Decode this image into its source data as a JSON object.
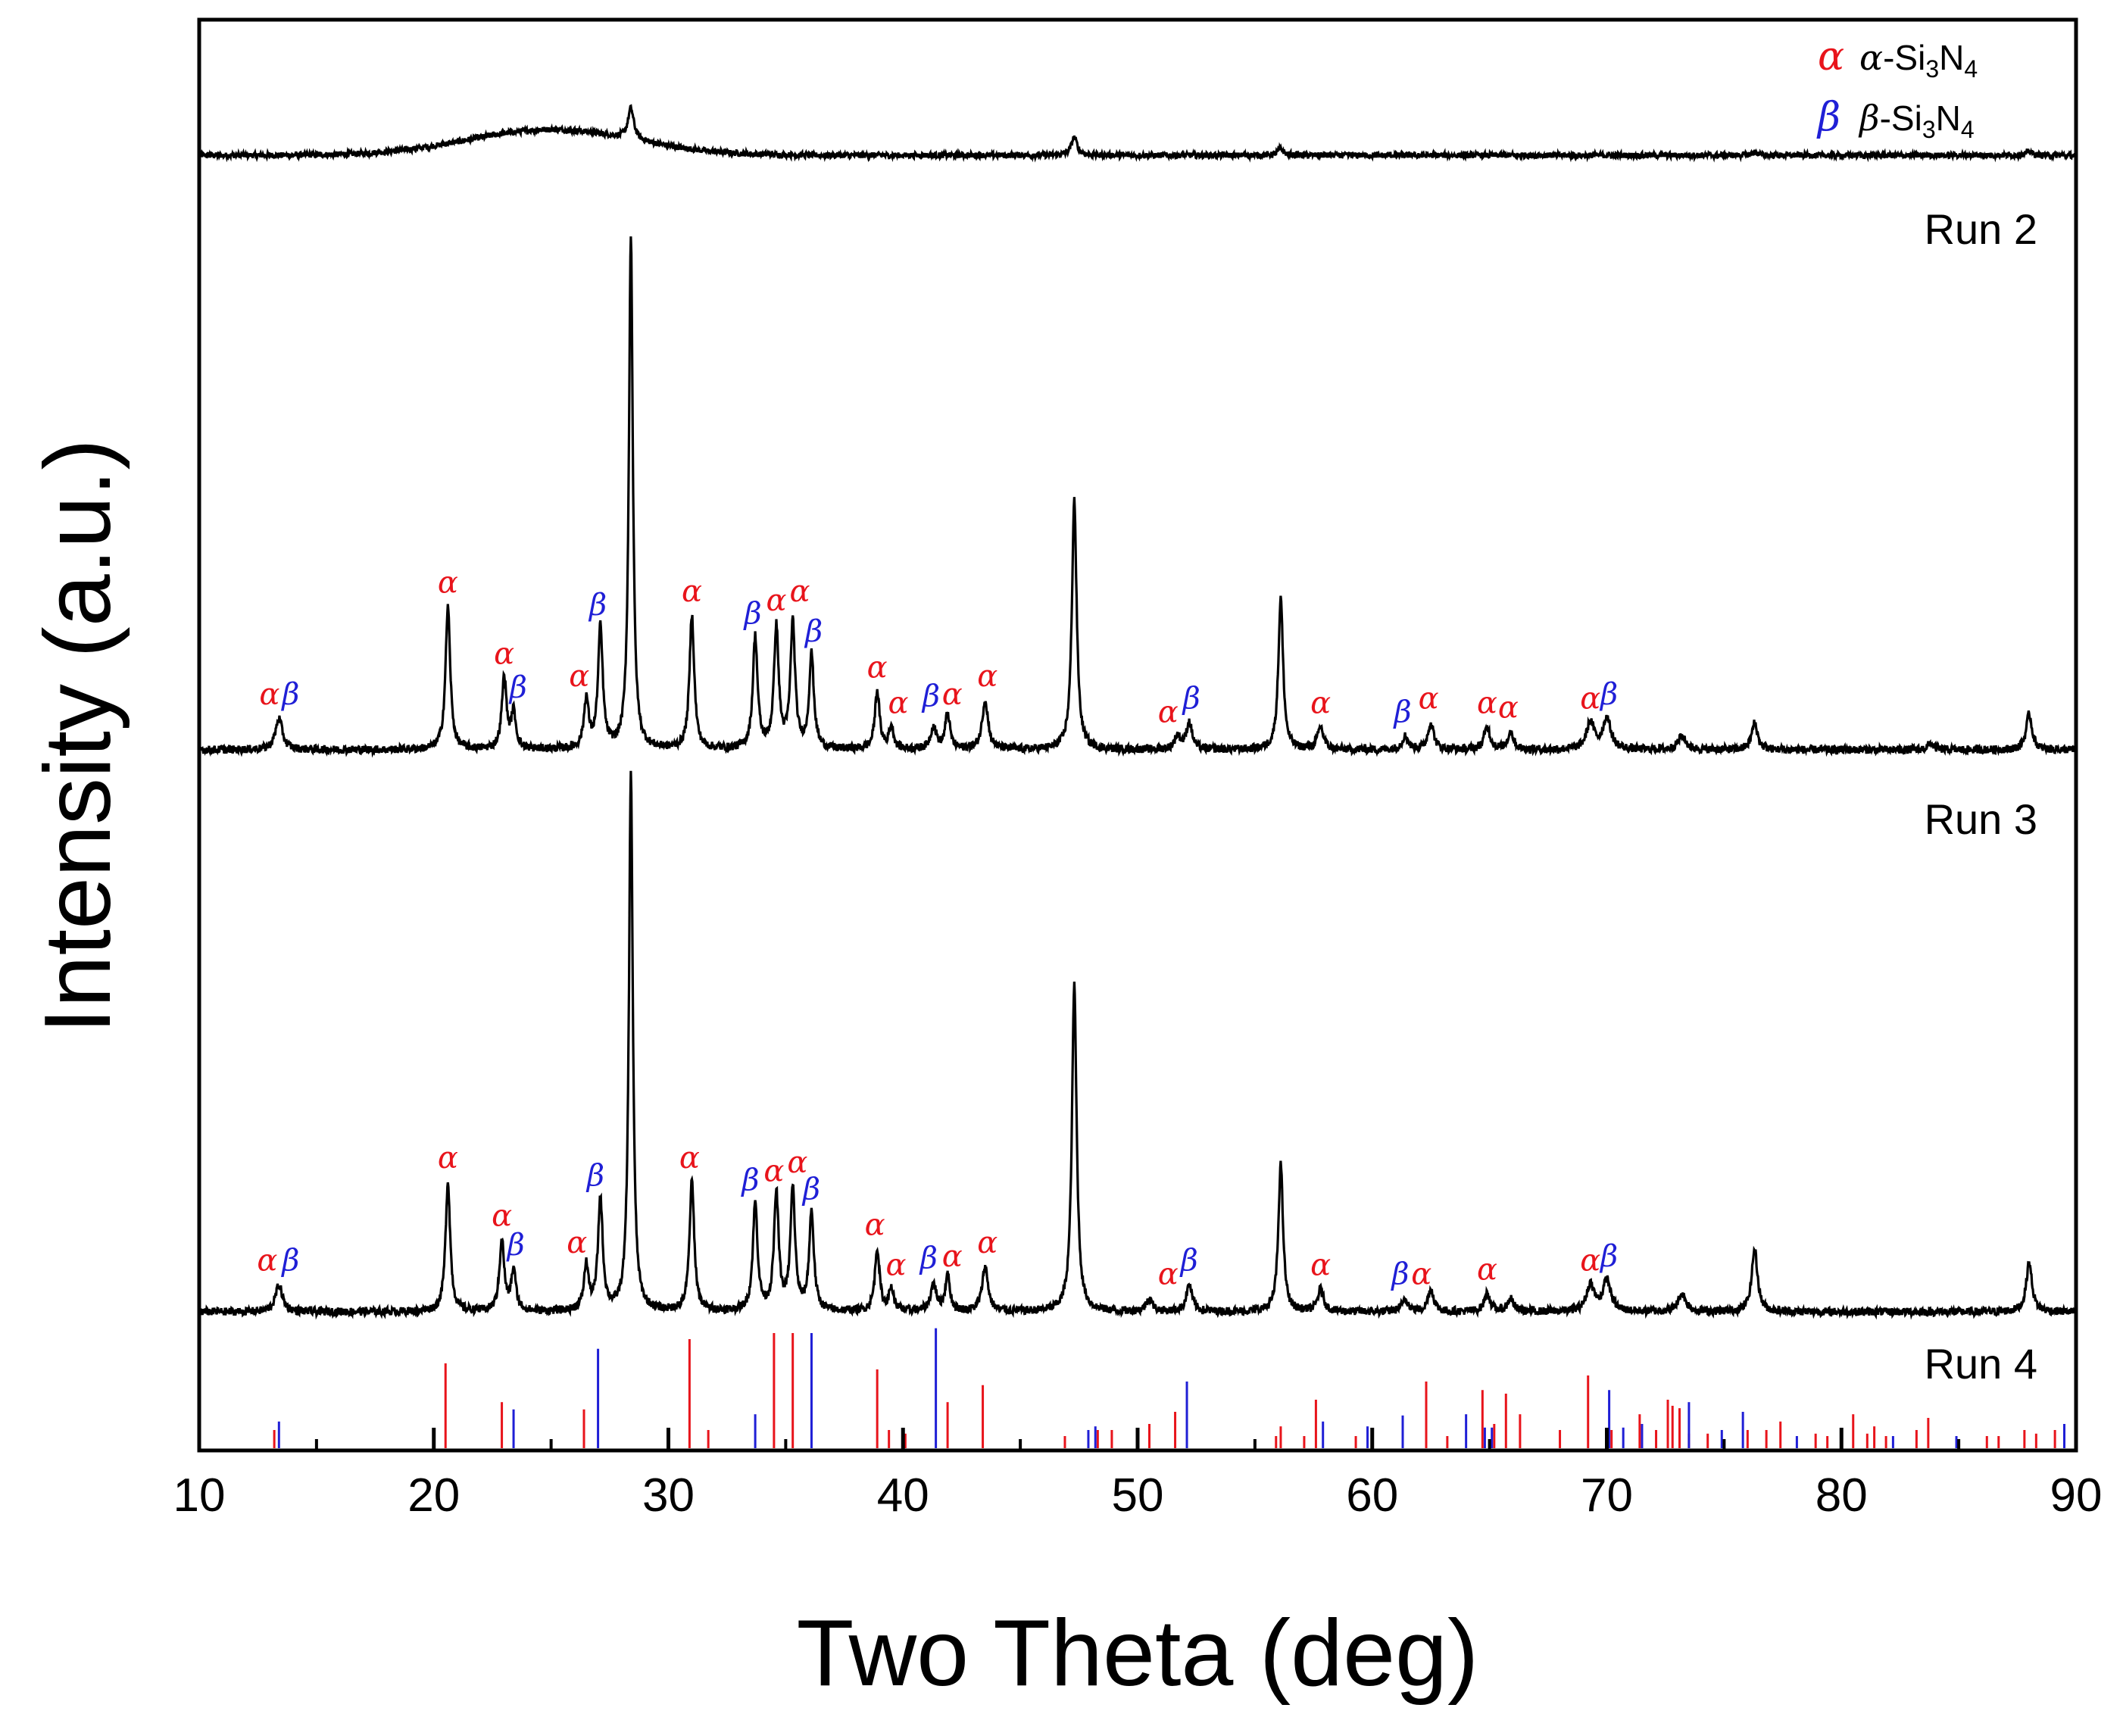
{
  "chart_data": {
    "type": "line",
    "title": "",
    "xlabel": "Two Theta (deg)",
    "ylabel": "Intensity (a.u.)",
    "xlim": [
      10,
      90
    ],
    "x_ticks": [
      10,
      20,
      30,
      40,
      50,
      60,
      70,
      80,
      90
    ],
    "yticks_shown": false,
    "legend": {
      "placement": "top-right",
      "entries": [
        {
          "symbol": "α",
          "label_greek": "α",
          "label_text": "-Si",
          "sub1": "3",
          "label_n": "N",
          "sub2": "4",
          "color": "#e8141b"
        },
        {
          "symbol": "β",
          "label_greek": "β",
          "label_text": "-Si",
          "sub1": "3",
          "label_n": "N",
          "sub2": "4",
          "color": "#1f1fd6"
        }
      ]
    },
    "series": [
      {
        "name": "Run 2",
        "label": "Run 2",
        "baseline": 0.5,
        "hump": {
          "center": 25,
          "width": 5,
          "height": 1.0
        },
        "peaks": [
          [
            28.4,
            1.2,
            0.15
          ],
          [
            47.3,
            0.7,
            0.15
          ],
          [
            56.1,
            0.25,
            0.15
          ],
          [
            76.3,
            0.12,
            0.15
          ],
          [
            88.0,
            0.15,
            0.15
          ]
        ],
        "noise": 0.22
      },
      {
        "name": "Run 3",
        "label": "Run 3",
        "baseline": 0.0,
        "peaks": [
          [
            13.4,
            0.7,
            0.18
          ],
          [
            20.6,
            3.2,
            0.12
          ],
          [
            23.0,
            1.6,
            0.12
          ],
          [
            23.4,
            0.8,
            0.12
          ],
          [
            26.5,
            1.1,
            0.12
          ],
          [
            27.1,
            2.7,
            0.12
          ],
          [
            28.4,
            11.5,
            0.1
          ],
          [
            31.0,
            3.0,
            0.12
          ],
          [
            33.7,
            2.5,
            0.12
          ],
          [
            34.6,
            2.7,
            0.12
          ],
          [
            35.3,
            2.8,
            0.12
          ],
          [
            36.1,
            2.1,
            0.12
          ],
          [
            38.9,
            1.3,
            0.12
          ],
          [
            39.5,
            0.5,
            0.12
          ],
          [
            41.3,
            0.5,
            0.15
          ],
          [
            41.9,
            0.8,
            0.12
          ],
          [
            43.5,
            1.1,
            0.15
          ],
          [
            47.3,
            5.6,
            0.12
          ],
          [
            51.7,
            0.3,
            0.15
          ],
          [
            52.2,
            0.6,
            0.15
          ],
          [
            56.1,
            3.4,
            0.12
          ],
          [
            57.8,
            0.5,
            0.15
          ],
          [
            61.4,
            0.3,
            0.15
          ],
          [
            62.5,
            0.6,
            0.15
          ],
          [
            64.9,
            0.5,
            0.15
          ],
          [
            65.9,
            0.4,
            0.15
          ],
          [
            69.3,
            0.6,
            0.2
          ],
          [
            70.0,
            0.7,
            0.2
          ],
          [
            73.2,
            0.3,
            0.2
          ],
          [
            76.3,
            0.6,
            0.15
          ],
          [
            83.8,
            0.15,
            0.15
          ],
          [
            88.0,
            0.8,
            0.15
          ]
        ],
        "noise": 0.18
      },
      {
        "name": "Run 4",
        "label": "Run 4",
        "baseline": 0.0,
        "peaks": [
          [
            13.4,
            0.6,
            0.18
          ],
          [
            20.6,
            2.9,
            0.12
          ],
          [
            22.9,
            1.6,
            0.12
          ],
          [
            23.4,
            0.9,
            0.12
          ],
          [
            26.5,
            1.0,
            0.12
          ],
          [
            27.1,
            2.5,
            0.12
          ],
          [
            28.4,
            12.0,
            0.1
          ],
          [
            31.0,
            2.9,
            0.12
          ],
          [
            33.7,
            2.4,
            0.12
          ],
          [
            34.6,
            2.6,
            0.12
          ],
          [
            35.3,
            2.7,
            0.12
          ],
          [
            36.1,
            2.2,
            0.12
          ],
          [
            38.9,
            1.4,
            0.12
          ],
          [
            39.5,
            0.5,
            0.12
          ],
          [
            41.3,
            0.6,
            0.15
          ],
          [
            41.9,
            0.8,
            0.12
          ],
          [
            43.5,
            1.0,
            0.15
          ],
          [
            47.3,
            7.3,
            0.12
          ],
          [
            50.5,
            0.3,
            0.15
          ],
          [
            52.2,
            0.6,
            0.15
          ],
          [
            56.1,
            3.3,
            0.12
          ],
          [
            57.8,
            0.5,
            0.15
          ],
          [
            61.4,
            0.3,
            0.15
          ],
          [
            62.5,
            0.5,
            0.15
          ],
          [
            64.9,
            0.4,
            0.15
          ],
          [
            65.9,
            0.3,
            0.15
          ],
          [
            69.3,
            0.6,
            0.2
          ],
          [
            70.0,
            0.7,
            0.2
          ],
          [
            73.2,
            0.4,
            0.2
          ],
          [
            76.3,
            1.4,
            0.15
          ],
          [
            88.0,
            1.1,
            0.15
          ]
        ],
        "noise": 0.18
      }
    ],
    "reference_alpha": [
      [
        13.2,
        0.15
      ],
      [
        20.5,
        0.7
      ],
      [
        22.9,
        0.38
      ],
      [
        26.4,
        0.32
      ],
      [
        30.9,
        0.9
      ],
      [
        31.7,
        0.15
      ],
      [
        34.5,
        0.95
      ],
      [
        35.3,
        0.95
      ],
      [
        38.9,
        0.65
      ],
      [
        39.4,
        0.15
      ],
      [
        40.1,
        0.12
      ],
      [
        41.9,
        0.38
      ],
      [
        43.4,
        0.52
      ],
      [
        46.9,
        0.1
      ],
      [
        48.3,
        0.15
      ],
      [
        48.9,
        0.15
      ],
      [
        50.5,
        0.2
      ],
      [
        51.6,
        0.3
      ],
      [
        55.9,
        0.1
      ],
      [
        56.1,
        0.18
      ],
      [
        57.1,
        0.1
      ],
      [
        57.6,
        0.4
      ],
      [
        59.3,
        0.1
      ],
      [
        60.0,
        0.1
      ],
      [
        62.3,
        0.55
      ],
      [
        63.2,
        0.1
      ],
      [
        64.7,
        0.48
      ],
      [
        65.2,
        0.2
      ],
      [
        65.7,
        0.45
      ],
      [
        66.3,
        0.28
      ],
      [
        68.0,
        0.15
      ],
      [
        69.2,
        0.6
      ],
      [
        70.2,
        0.15
      ],
      [
        71.4,
        0.28
      ],
      [
        72.1,
        0.15
      ],
      [
        72.6,
        0.4
      ],
      [
        72.8,
        0.35
      ],
      [
        73.1,
        0.33
      ],
      [
        73.5,
        0.12
      ],
      [
        74.3,
        0.12
      ],
      [
        76.0,
        0.15
      ],
      [
        76.8,
        0.15
      ],
      [
        77.4,
        0.22
      ],
      [
        78.9,
        0.12
      ],
      [
        79.4,
        0.1
      ],
      [
        80.5,
        0.28
      ],
      [
        81.1,
        0.12
      ],
      [
        81.4,
        0.18
      ],
      [
        81.9,
        0.1
      ],
      [
        83.2,
        0.15
      ],
      [
        83.7,
        0.25
      ],
      [
        86.2,
        0.1
      ],
      [
        86.7,
        0.1
      ],
      [
        87.8,
        0.15
      ],
      [
        88.3,
        0.12
      ],
      [
        89.1,
        0.15
      ]
    ],
    "reference_beta": [
      [
        13.4,
        0.22
      ],
      [
        23.4,
        0.32
      ],
      [
        27.0,
        0.82
      ],
      [
        33.7,
        0.28
      ],
      [
        36.1,
        0.95
      ],
      [
        41.4,
        0.99
      ],
      [
        47.9,
        0.15
      ],
      [
        48.2,
        0.18
      ],
      [
        52.1,
        0.55
      ],
      [
        57.9,
        0.22
      ],
      [
        59.8,
        0.18
      ],
      [
        61.3,
        0.27
      ],
      [
        64.0,
        0.28
      ],
      [
        64.8,
        0.17
      ],
      [
        65.1,
        0.17
      ],
      [
        70.1,
        0.48
      ],
      [
        70.7,
        0.17
      ],
      [
        71.5,
        0.2
      ],
      [
        73.5,
        0.38
      ],
      [
        74.9,
        0.15
      ],
      [
        75.8,
        0.3
      ],
      [
        78.1,
        0.1
      ],
      [
        82.2,
        0.1
      ],
      [
        84.9,
        0.1
      ],
      [
        89.5,
        0.2
      ]
    ],
    "annotations": {
      "Run 3": [
        [
          "α",
          13.0,
          0.75,
          "#e8141b"
        ],
        [
          "β",
          13.9,
          0.75,
          "#1f1fd6"
        ],
        [
          "α",
          20.6,
          3.25,
          "#e8141b"
        ],
        [
          "α",
          23.0,
          1.65,
          "#e8141b"
        ],
        [
          "β",
          23.6,
          0.9,
          "#1f1fd6"
        ],
        [
          "α",
          26.2,
          1.15,
          "#e8141b"
        ],
        [
          "β",
          27.0,
          2.75,
          "#1f1fd6"
        ],
        [
          "α",
          31.0,
          3.05,
          "#e8141b"
        ],
        [
          "β",
          33.6,
          2.55,
          "#1f1fd6"
        ],
        [
          "α",
          34.6,
          2.85,
          "#e8141b"
        ],
        [
          "α",
          35.6,
          3.05,
          "#e8141b"
        ],
        [
          "β",
          36.2,
          2.15,
          "#1f1fd6"
        ],
        [
          "α",
          38.9,
          1.35,
          "#e8141b"
        ],
        [
          "α",
          39.8,
          0.55,
          "#e8141b"
        ],
        [
          "β",
          41.2,
          0.7,
          "#1f1fd6"
        ],
        [
          "α",
          42.1,
          0.75,
          "#e8141b"
        ],
        [
          "α",
          43.6,
          1.15,
          "#e8141b"
        ],
        [
          "α",
          51.3,
          0.35,
          "#e8141b"
        ],
        [
          "β",
          52.3,
          0.65,
          "#1f1fd6"
        ],
        [
          "α",
          57.8,
          0.55,
          "#e8141b"
        ],
        [
          "β",
          61.3,
          0.35,
          "#1f1fd6"
        ],
        [
          "α",
          62.4,
          0.65,
          "#e8141b"
        ],
        [
          "α",
          64.9,
          0.55,
          "#e8141b"
        ],
        [
          "α",
          65.8,
          0.45,
          "#e8141b"
        ],
        [
          "α",
          69.3,
          0.65,
          "#e8141b"
        ],
        [
          "β",
          70.1,
          0.75,
          "#1f1fd6"
        ]
      ],
      "Run 4": [
        [
          "α",
          12.9,
          0.65,
          "#e8141b"
        ],
        [
          "β",
          13.9,
          0.65,
          "#1f1fd6"
        ],
        [
          "α",
          20.6,
          2.95,
          "#e8141b"
        ],
        [
          "α",
          22.9,
          1.65,
          "#e8141b"
        ],
        [
          "β",
          23.5,
          1.0,
          "#1f1fd6"
        ],
        [
          "α",
          26.1,
          1.05,
          "#e8141b"
        ],
        [
          "β",
          26.9,
          2.55,
          "#1f1fd6"
        ],
        [
          "α",
          30.9,
          2.95,
          "#e8141b"
        ],
        [
          "β",
          33.5,
          2.45,
          "#1f1fd6"
        ],
        [
          "α",
          34.5,
          2.65,
          "#e8141b"
        ],
        [
          "α",
          35.5,
          2.85,
          "#e8141b"
        ],
        [
          "β",
          36.1,
          2.25,
          "#1f1fd6"
        ],
        [
          "α",
          38.8,
          1.45,
          "#e8141b"
        ],
        [
          "α",
          39.7,
          0.55,
          "#e8141b"
        ],
        [
          "β",
          41.1,
          0.7,
          "#1f1fd6"
        ],
        [
          "α",
          42.1,
          0.75,
          "#e8141b"
        ],
        [
          "α",
          43.6,
          1.05,
          "#e8141b"
        ],
        [
          "α",
          51.3,
          0.35,
          "#e8141b"
        ],
        [
          "β",
          52.2,
          0.65,
          "#1f1fd6"
        ],
        [
          "α",
          57.8,
          0.55,
          "#e8141b"
        ],
        [
          "β",
          61.2,
          0.35,
          "#1f1fd6"
        ],
        [
          "α",
          62.1,
          0.35,
          "#e8141b"
        ],
        [
          "α",
          64.9,
          0.45,
          "#e8141b"
        ],
        [
          "α",
          69.3,
          0.65,
          "#e8141b"
        ],
        [
          "β",
          70.1,
          0.75,
          "#1f1fd6"
        ]
      ]
    }
  }
}
